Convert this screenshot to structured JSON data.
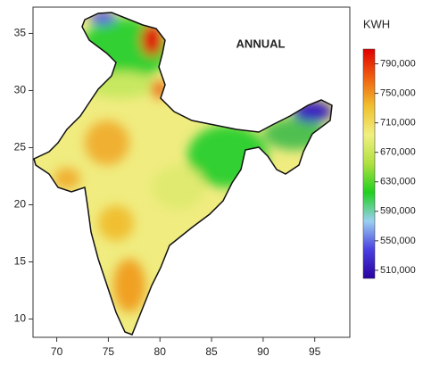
{
  "map": {
    "title": "ANNUAL",
    "xlim": [
      67.7,
      98.4
    ],
    "xticks": [
      70,
      75,
      80,
      85,
      90,
      95
    ],
    "ylim": [
      8.4,
      37.3
    ],
    "yticks": [
      10,
      15,
      20,
      25,
      30,
      35
    ],
    "colorbar": {
      "label": "KWH",
      "lim": [
        499000,
        810000
      ],
      "colors": [
        "#2a00a0",
        "#4a40e0",
        "#9ad0f0",
        "#20d020",
        "#b0e040",
        "#f0f080",
        "#f0c030",
        "#f06010",
        "#e00000"
      ],
      "ticks": [
        {
          "value": 790000,
          "label": "790,000"
        },
        {
          "value": 750000,
          "label": "750,000"
        },
        {
          "value": 710000,
          "label": "710,000"
        },
        {
          "value": 670000,
          "label": "670,000"
        },
        {
          "value": 630000,
          "label": "630,000"
        },
        {
          "value": 590000,
          "label": "590,000"
        },
        {
          "value": 550000,
          "label": "550,000"
        },
        {
          "value": 510000,
          "label": "510,000"
        }
      ]
    }
  }
}
